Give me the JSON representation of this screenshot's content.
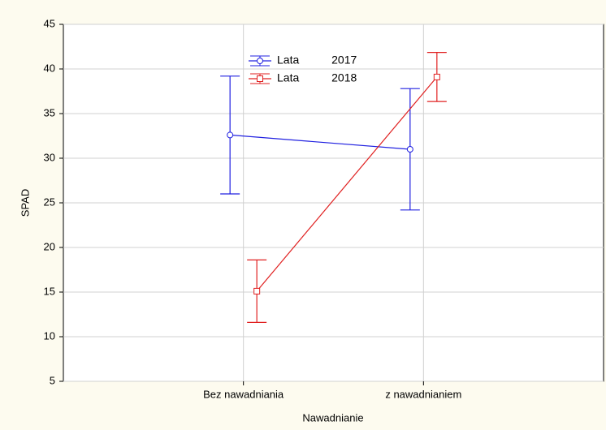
{
  "chart_data": {
    "type": "line",
    "x_label": "Nawadnianie",
    "y_label": "SPAD",
    "categories": [
      "Bez nawadniania",
      "z nawadnianiem"
    ],
    "series": [
      {
        "name": "Lata 2017",
        "color": "#2020e0",
        "marker": "circle",
        "values": [
          32.6,
          31.0
        ],
        "errors": [
          6.6,
          6.8
        ]
      },
      {
        "name": "Lata 2018",
        "color": "#e02020",
        "marker": "square",
        "values": [
          15.1,
          39.1
        ],
        "errors": [
          3.5,
          2.75
        ]
      }
    ],
    "ylim": [
      5,
      45
    ],
    "yticks": [
      5,
      10,
      15,
      20,
      25,
      30,
      35,
      40,
      45
    ],
    "grid": true
  }
}
